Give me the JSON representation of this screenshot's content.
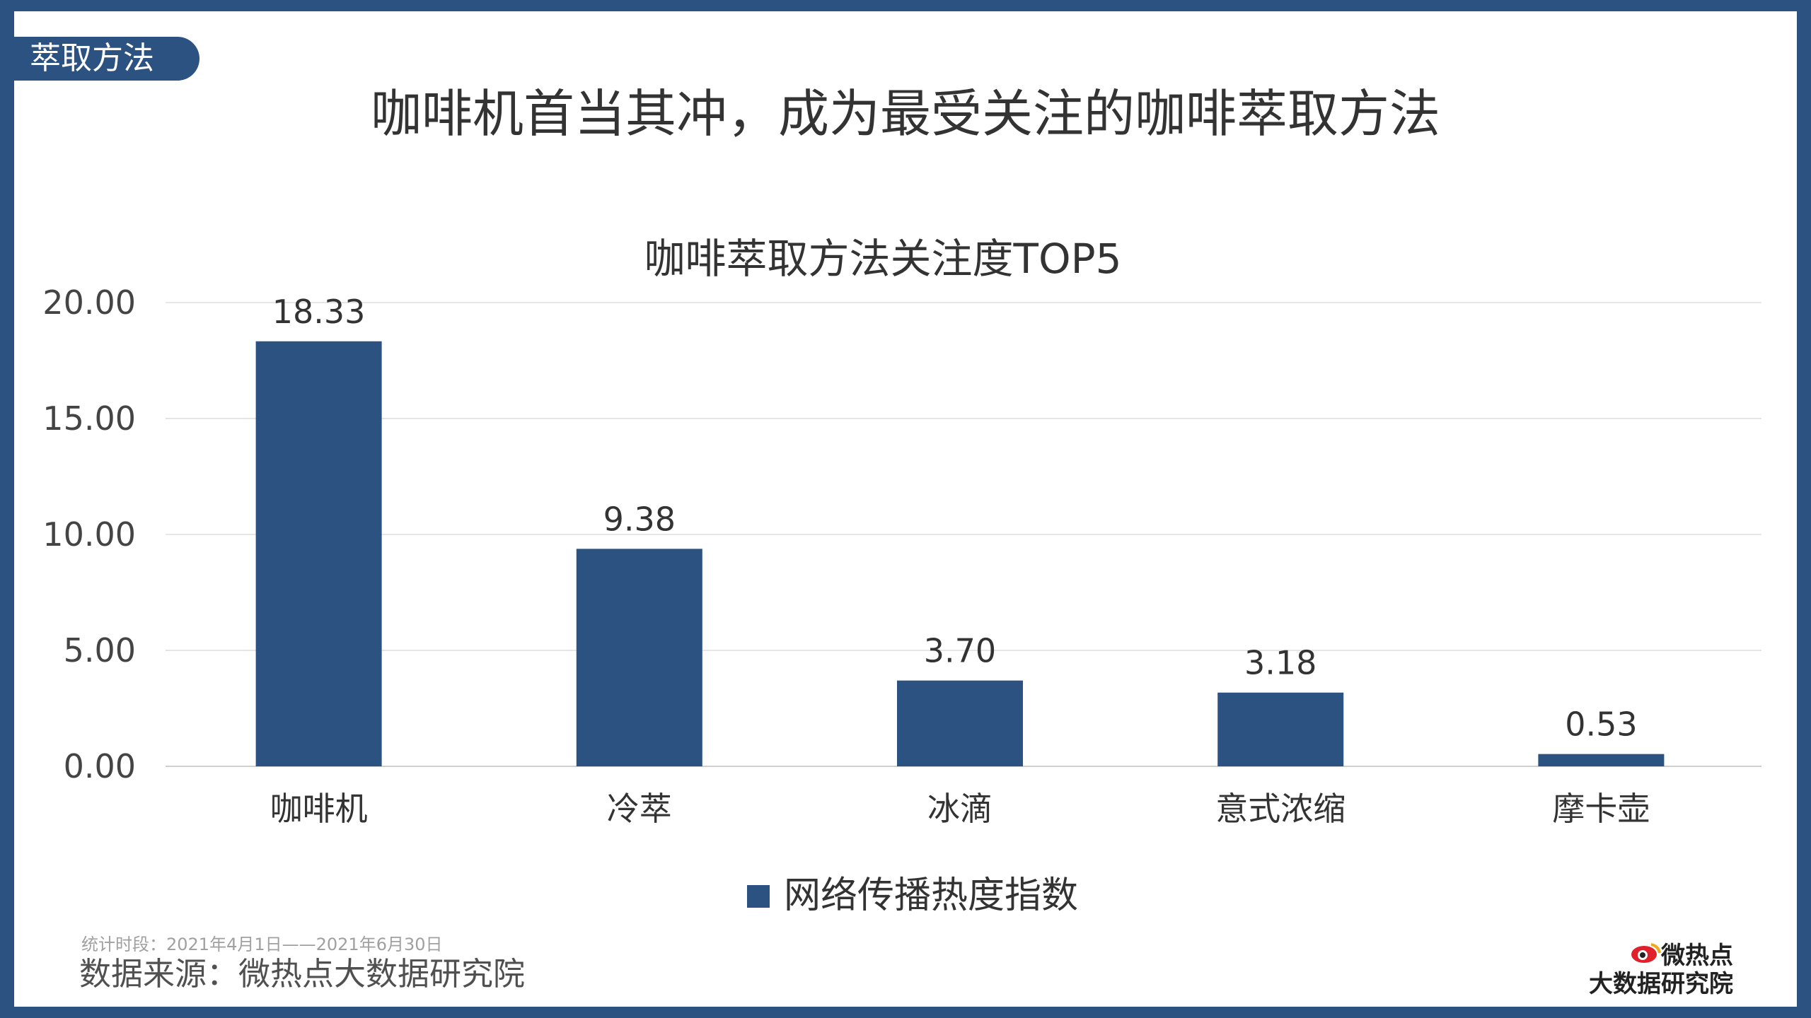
{
  "tag": "萃取方法",
  "main_title": "咖啡机首当其冲，成为最受关注的咖啡萃取方法",
  "source": {
    "period": "统计时段：2021年4月1日——2021年6月30日",
    "line": "数据来源：微热点大数据研究院"
  },
  "logo": {
    "top": "微热点",
    "bottom": "大数据研究院"
  },
  "colors": {
    "bar": "#2c5282",
    "frame": "#2c5282"
  },
  "chart_data": {
    "type": "bar",
    "title": "咖啡萃取方法关注度TOP5",
    "categories": [
      "咖啡机",
      "冷萃",
      "冰滴",
      "意式浓缩",
      "摩卡壶"
    ],
    "series": [
      {
        "name": "网络传播热度指数",
        "values": [
          18.33,
          9.38,
          3.7,
          3.18,
          0.53
        ]
      }
    ],
    "value_labels": [
      "18.33",
      "9.38",
      "3.70",
      "3.18",
      "0.53"
    ],
    "ylim": [
      0,
      20
    ],
    "yticks": [
      0,
      5,
      10,
      15,
      20
    ],
    "ytick_labels": [
      "0.00",
      "5.00",
      "10.00",
      "15.00",
      "20.00"
    ],
    "grid": true,
    "legend": "bottom-center"
  }
}
